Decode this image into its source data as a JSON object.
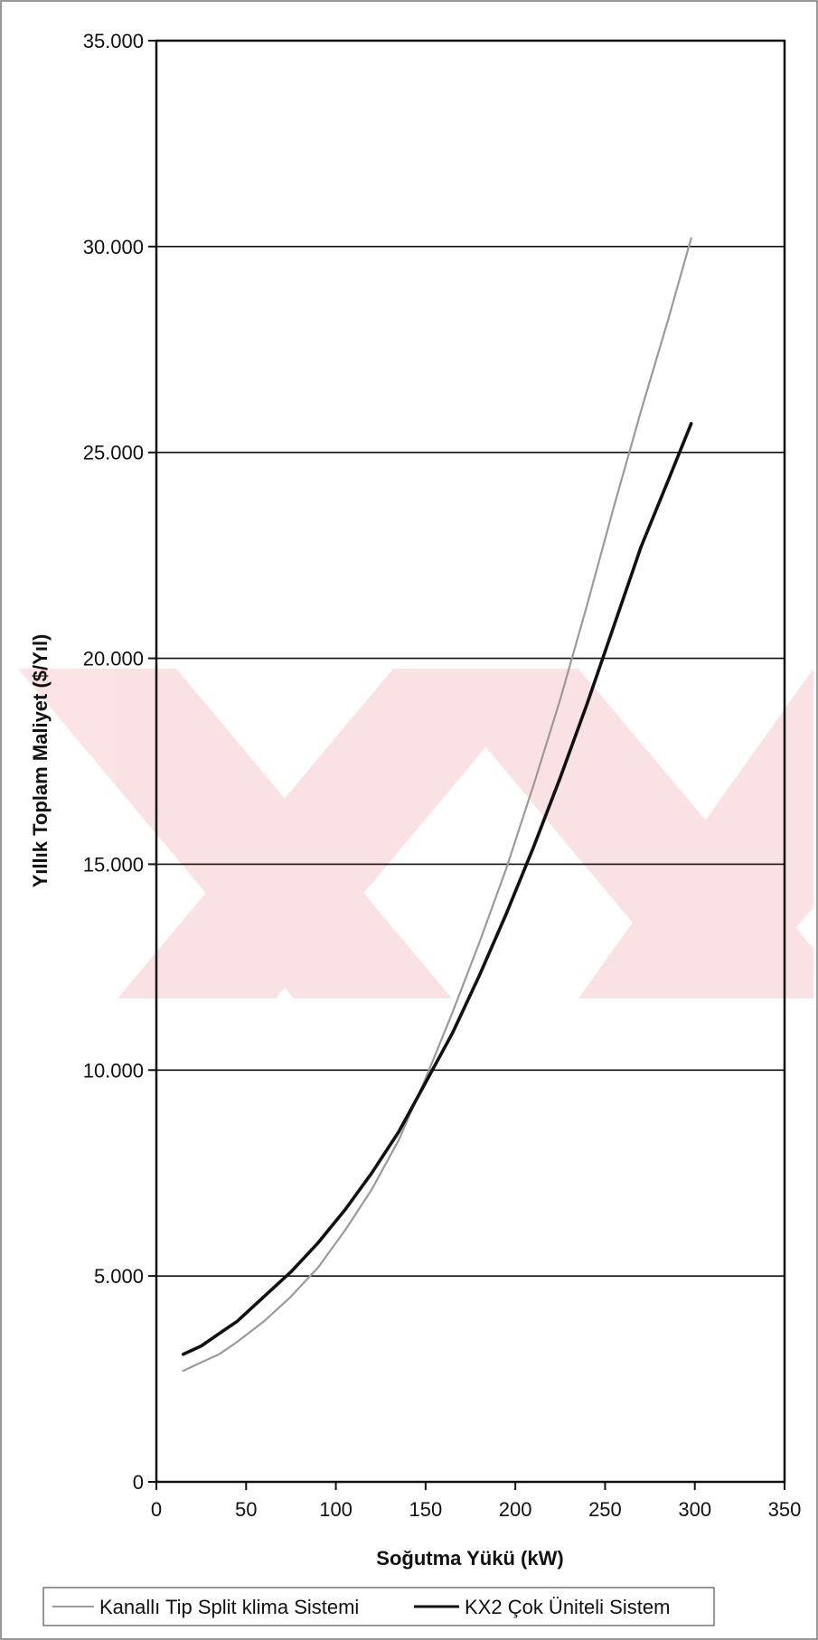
{
  "chart_data": {
    "type": "line",
    "xlabel": "Soğutma Yükü (kW)",
    "ylabel": "Yıllık Toplam Maliyet ($/Yıl)",
    "xlim": [
      0,
      350
    ],
    "ylim": [
      0,
      35000
    ],
    "x_ticks": [
      0,
      50,
      100,
      150,
      200,
      250,
      300,
      350
    ],
    "x_tick_labels": [
      "0",
      "50",
      "100",
      "150",
      "200",
      "250",
      "300",
      "350"
    ],
    "y_ticks": [
      0,
      5000,
      10000,
      15000,
      20000,
      25000,
      30000,
      35000
    ],
    "y_tick_labels": [
      "0",
      "5.000",
      "10.000",
      "15.000",
      "20.000",
      "25.000",
      "30.000",
      "35.000"
    ],
    "grid": "horizontal",
    "legend_position": "bottom",
    "series": [
      {
        "name": "Kanallı Tip Split klima Sistemi",
        "color": "#9a9a9a",
        "x": [
          15,
          25,
          35,
          45,
          60,
          75,
          90,
          105,
          120,
          135,
          150,
          165,
          180,
          195,
          210,
          225,
          240,
          255,
          270,
          285,
          298
        ],
        "y": [
          2700,
          2900,
          3100,
          3400,
          3900,
          4500,
          5200,
          6100,
          7100,
          8300,
          9800,
          11400,
          13100,
          14900,
          16900,
          19000,
          21300,
          23700,
          26000,
          28200,
          30200
        ]
      },
      {
        "name": "KX2 Çok Üniteli Sistem",
        "color": "#111111",
        "x": [
          15,
          25,
          35,
          45,
          60,
          75,
          90,
          105,
          120,
          135,
          150,
          165,
          180,
          195,
          210,
          225,
          240,
          255,
          270,
          285,
          298
        ],
        "y": [
          3100,
          3300,
          3600,
          3900,
          4500,
          5100,
          5800,
          6600,
          7500,
          8500,
          9700,
          10900,
          12300,
          13800,
          15400,
          17100,
          18900,
          20800,
          22700,
          24300,
          25700
        ]
      }
    ]
  }
}
